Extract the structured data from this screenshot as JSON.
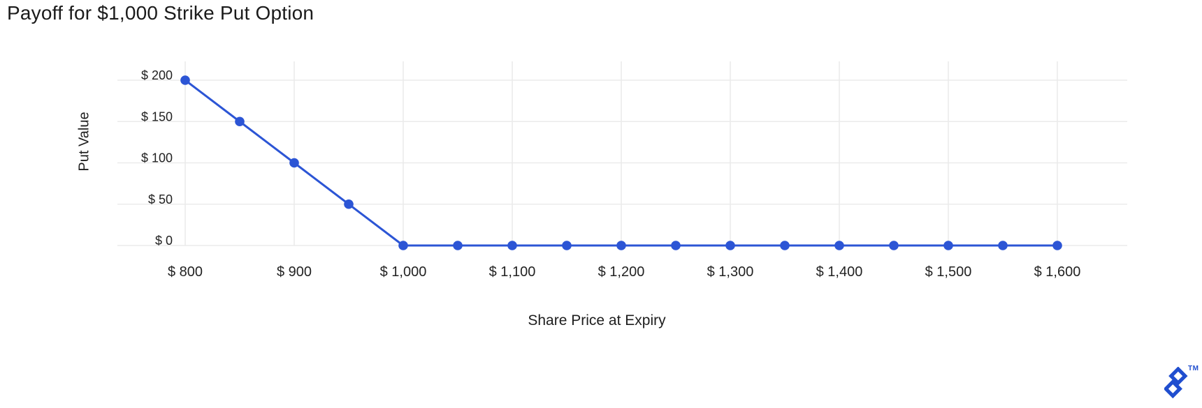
{
  "page": {
    "background": "#ffffff"
  },
  "chart_data": {
    "type": "line",
    "title": "Payoff for $1,000 Strike Put Option",
    "xlabel": "Share Price at Expiry",
    "ylabel": "Put Value",
    "x": [
      800,
      850,
      900,
      950,
      1000,
      1050,
      1100,
      1150,
      1200,
      1250,
      1300,
      1350,
      1400,
      1450,
      1500,
      1550,
      1600
    ],
    "y": [
      200,
      150,
      100,
      50,
      0,
      0,
      0,
      0,
      0,
      0,
      0,
      0,
      0,
      0,
      0,
      0,
      0
    ],
    "x_ticks": {
      "values": [
        800,
        900,
        1000,
        1100,
        1200,
        1300,
        1400,
        1500,
        1600
      ],
      "labels": [
        "$ 800",
        "$ 900",
        "$ 1,000",
        "$ 1,100",
        "$ 1,200",
        "$ 1,300",
        "$ 1,400",
        "$ 1,500",
        "$ 1,600"
      ]
    },
    "y_ticks": {
      "values": [
        0,
        50,
        100,
        150,
        200
      ],
      "labels": [
        "$ 0",
        "$ 50",
        "$ 100",
        "$ 150",
        "$ 200"
      ]
    },
    "xlim": [
      800,
      1600
    ],
    "ylim": [
      0,
      200
    ],
    "grid": true,
    "legend": false,
    "line_color": "#2C55D5",
    "marker_color": "#2C55D5",
    "grid_color": "#ebebeb",
    "tick_text_color": "#222222"
  },
  "brand": {
    "logo_icon": "toptal-logo",
    "tm_label": "TM",
    "color": "#204ECF"
  }
}
